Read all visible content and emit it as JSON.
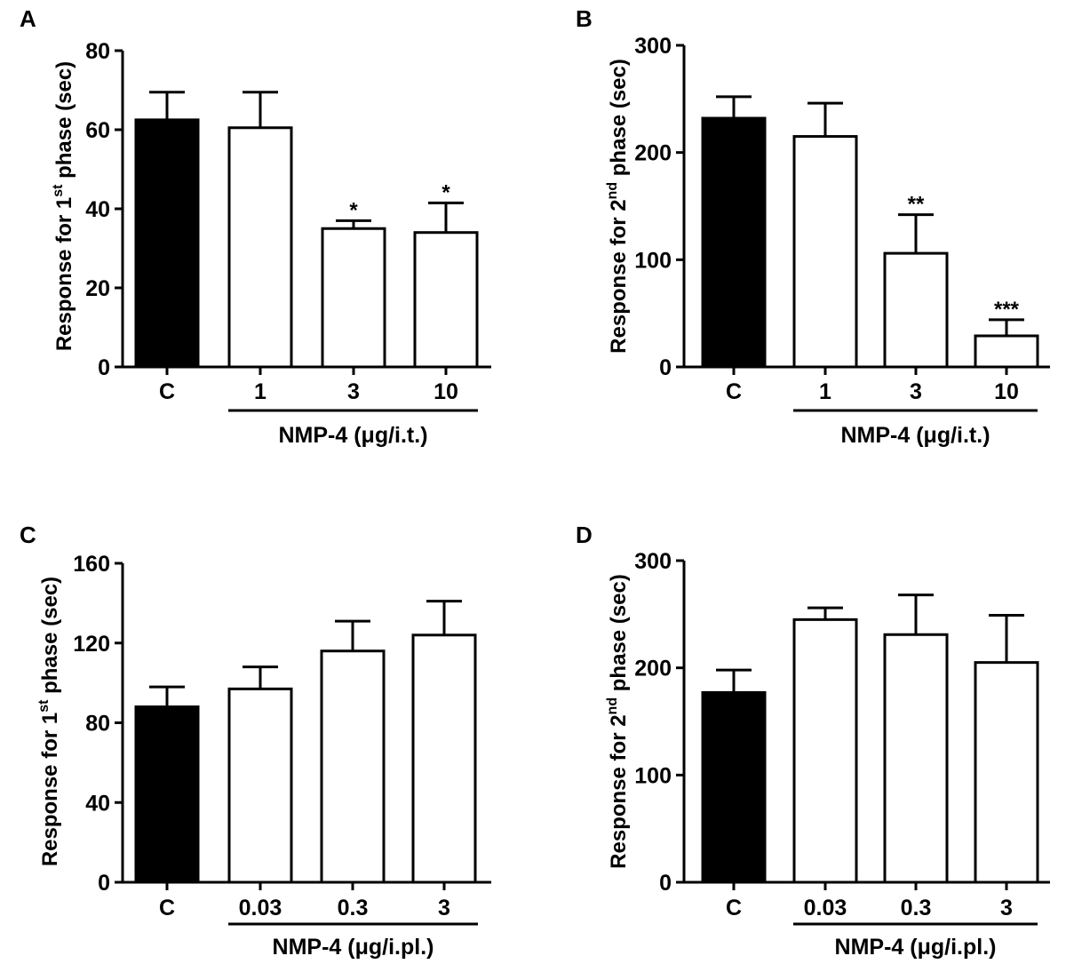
{
  "chart_data": [
    {
      "panel_label": "A",
      "type": "bar",
      "ylabel_main": "Response for 1",
      "ylabel_sup": "st",
      "ylabel_rest": " phase (sec)",
      "categories": [
        "C",
        "1",
        "3",
        "10"
      ],
      "values": [
        62.5,
        60.5,
        35,
        34
      ],
      "errors": [
        7,
        9,
        2,
        7.5
      ],
      "fills": [
        "#000000",
        "#ffffff",
        "#ffffff",
        "#ffffff"
      ],
      "annotations": [
        "",
        "",
        "*",
        "*"
      ],
      "ylim": [
        0,
        80
      ],
      "yticks": [
        0,
        20,
        40,
        60,
        80
      ],
      "group_label": "NMP-4 (μg/i.t.)",
      "group_categories": [
        "1",
        "3",
        "10"
      ]
    },
    {
      "panel_label": "B",
      "type": "bar",
      "ylabel_main": "Response for 2",
      "ylabel_sup": "nd",
      "ylabel_rest": " phase (sec)",
      "categories": [
        "C",
        "1",
        "3",
        "10"
      ],
      "values": [
        232,
        215,
        106,
        29
      ],
      "errors": [
        20,
        31,
        36,
        15
      ],
      "fills": [
        "#000000",
        "#ffffff",
        "#ffffff",
        "#ffffff"
      ],
      "annotations": [
        "",
        "",
        "**",
        "***"
      ],
      "ylim": [
        0,
        300
      ],
      "yticks": [
        0,
        100,
        200,
        300
      ],
      "group_label": "NMP-4 (μg/i.t.)",
      "group_categories": [
        "1",
        "3",
        "10"
      ]
    },
    {
      "panel_label": "C",
      "type": "bar",
      "ylabel_main": "Response for 1",
      "ylabel_sup": "st",
      "ylabel_rest": " phase (sec)",
      "categories": [
        "C",
        "0.03",
        "0.3",
        "3"
      ],
      "values": [
        88,
        97,
        116,
        124
      ],
      "errors": [
        10,
        11,
        15,
        17
      ],
      "fills": [
        "#000000",
        "#ffffff",
        "#ffffff",
        "#ffffff"
      ],
      "annotations": [
        "",
        "",
        "",
        ""
      ],
      "ylim": [
        0,
        160
      ],
      "yticks": [
        0,
        40,
        80,
        120,
        160
      ],
      "group_label": "NMP-4 (μg/i.pl.)",
      "group_categories": [
        "0.03",
        "0.3",
        "3"
      ]
    },
    {
      "panel_label": "D",
      "type": "bar",
      "ylabel_main": "Response for 2",
      "ylabel_sup": "nd",
      "ylabel_rest": " phase (sec)",
      "categories": [
        "C",
        "0.03",
        "0.3",
        "3"
      ],
      "values": [
        177,
        245,
        231,
        205
      ],
      "errors": [
        21,
        11,
        37,
        44
      ],
      "fills": [
        "#000000",
        "#ffffff",
        "#ffffff",
        "#ffffff"
      ],
      "annotations": [
        "",
        "",
        "",
        ""
      ],
      "ylim": [
        0,
        300
      ],
      "yticks": [
        0,
        100,
        200,
        300
      ],
      "group_label": "NMP-4 (μg/i.pl.)",
      "group_categories": [
        "0.03",
        "0.3",
        "3"
      ]
    }
  ]
}
